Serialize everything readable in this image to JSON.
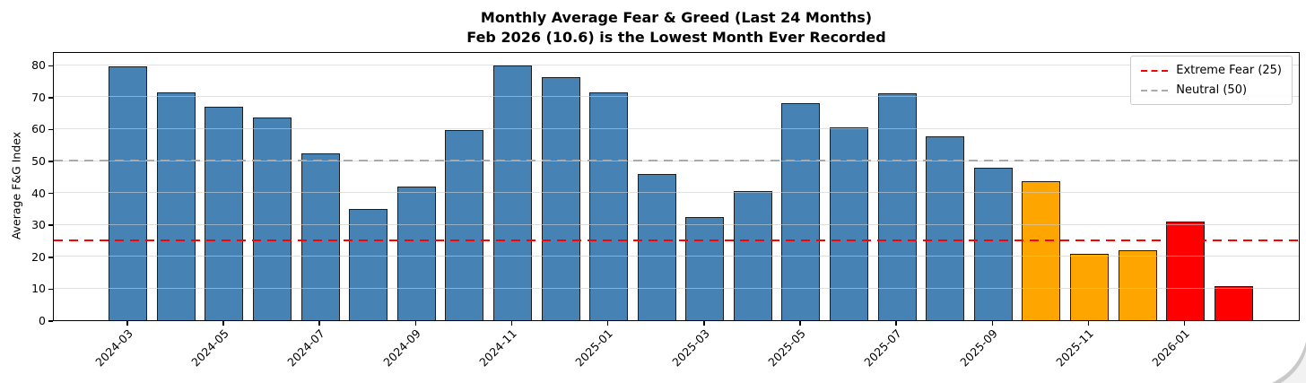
{
  "chart_data": {
    "type": "bar",
    "title": "Monthly Average Fear & Greed (Last 24 Months)",
    "subtitle": "Feb 2026 (10.6) is the Lowest Month Ever Recorded",
    "xlabel": "",
    "ylabel": "Average F&G Index",
    "ylim": [
      0,
      84.3
    ],
    "yticks": [
      0,
      10,
      20,
      30,
      40,
      50,
      60,
      70,
      80
    ],
    "grid": true,
    "legend_position": "upper right",
    "categories": [
      "2024-03",
      "2024-04",
      "2024-05",
      "2024-06",
      "2024-07",
      "2024-08",
      "2024-09",
      "2024-10",
      "2024-11",
      "2024-12",
      "2025-01",
      "2025-02",
      "2025-03",
      "2025-04",
      "2025-05",
      "2025-06",
      "2025-07",
      "2025-08",
      "2025-09",
      "2025-10",
      "2025-11",
      "2025-12",
      "2026-01",
      "2026-02"
    ],
    "values": [
      79.5,
      71.5,
      67.0,
      63.4,
      52.4,
      34.8,
      41.9,
      59.5,
      79.9,
      76.1,
      71.5,
      45.8,
      32.3,
      40.4,
      68.0,
      60.5,
      71.2,
      57.6,
      47.9,
      43.5,
      20.7,
      22.0,
      31.0,
      10.6
    ],
    "bar_colors": [
      "#4682b4",
      "#4682b4",
      "#4682b4",
      "#4682b4",
      "#4682b4",
      "#4682b4",
      "#4682b4",
      "#4682b4",
      "#4682b4",
      "#4682b4",
      "#4682b4",
      "#4682b4",
      "#4682b4",
      "#4682b4",
      "#4682b4",
      "#4682b4",
      "#4682b4",
      "#4682b4",
      "#4682b4",
      "#ffa500",
      "#ffa500",
      "#ffa500",
      "#ff0000",
      "#ff0000"
    ],
    "xtick_labels": [
      "2024-03",
      "2024-05",
      "2024-07",
      "2024-09",
      "2024-11",
      "2025-01",
      "2025-03",
      "2025-05",
      "2025-07",
      "2025-09",
      "2025-11",
      "2026-01"
    ],
    "reference_lines": [
      {
        "name": "extreme-fear",
        "value": 25,
        "color": "#ff0000",
        "style": "dashed",
        "legend_label": "Extreme Fear (25)"
      },
      {
        "name": "neutral",
        "value": 50,
        "color": "#aaaaaa",
        "style": "dashed",
        "legend_label": "Neutral (50)"
      }
    ],
    "colors": {
      "bar_default": "#4682b4",
      "bar_warning": "#ffa500",
      "bar_danger": "#ff0000",
      "bar_edge": "#1c1c1c",
      "gridline": "#dcdcdc",
      "axis": "#000000",
      "legend_border": "#cccccc"
    }
  }
}
